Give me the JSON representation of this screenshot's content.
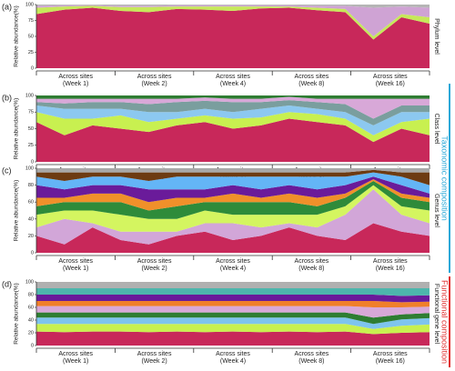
{
  "chart_data": [
    {
      "type": "stacked_area",
      "panel_label": "(a)",
      "y_label": "Relative abundance(%)",
      "level_label": "Phylum level",
      "ylim": [
        0,
        100
      ],
      "yticks": [
        0,
        25,
        50,
        75,
        100
      ],
      "categories": [
        null,
        null,
        null,
        null,
        null,
        null,
        null,
        null,
        null,
        null,
        null,
        null,
        null,
        null,
        null
      ],
      "groups": [
        [
          "Across sites",
          "(Week 1)"
        ],
        [
          "Across sites",
          "(Week 2)"
        ],
        [
          "Across sites",
          "(Week 4)"
        ],
        [
          "Across sites",
          "(Week 8)"
        ],
        [
          "Across sites",
          "(Week 16)"
        ]
      ],
      "series": [
        {
          "color": "#c8285a",
          "values": [
            85,
            92,
            95,
            90,
            88,
            93,
            92,
            90,
            94,
            95,
            91,
            88,
            45,
            80,
            70
          ]
        },
        {
          "color": "#c6e85a",
          "values": [
            10,
            5,
            3,
            6,
            8,
            4,
            5,
            7,
            3,
            2,
            4,
            5,
            5,
            5,
            10
          ]
        },
        {
          "color": "#cfa3d4",
          "values": [
            3,
            2,
            1,
            2,
            2,
            2,
            2,
            2,
            2,
            2,
            3,
            5,
            45,
            12,
            15
          ]
        },
        {
          "color": "#b5b5b5",
          "values": [
            2,
            1,
            1,
            2,
            2,
            1,
            1,
            1,
            1,
            1,
            2,
            2,
            5,
            3,
            5
          ]
        }
      ]
    },
    {
      "type": "stacked_area",
      "panel_label": "(b)",
      "y_label": "Relative abundance(%)",
      "level_label": "Class level",
      "ylim": [
        0,
        100
      ],
      "yticks": [
        0,
        25,
        50,
        75,
        100
      ],
      "categories": [
        null,
        null,
        null,
        null,
        null,
        null,
        null,
        null,
        null,
        null,
        null,
        null,
        null,
        null,
        null
      ],
      "groups": [
        [
          "Across sites",
          "(Week 1)"
        ],
        [
          "Across sites",
          "(Week 2)"
        ],
        [
          "Across sites",
          "(Week 4)"
        ],
        [
          "Across sites",
          "(Week 8)"
        ],
        [
          "Across sites",
          "(Week 16)"
        ]
      ],
      "series": [
        {
          "color": "#c8285a",
          "values": [
            60,
            40,
            55,
            50,
            45,
            55,
            60,
            50,
            55,
            65,
            60,
            55,
            30,
            50,
            40
          ]
        },
        {
          "color": "#c8f050",
          "values": [
            15,
            25,
            10,
            20,
            15,
            10,
            10,
            15,
            12,
            10,
            12,
            10,
            10,
            10,
            25
          ]
        },
        {
          "color": "#8cc8f0",
          "values": [
            10,
            15,
            15,
            10,
            15,
            10,
            10,
            10,
            13,
            10,
            8,
            10,
            15,
            15,
            10
          ]
        },
        {
          "color": "#7a9e9e",
          "values": [
            5,
            8,
            10,
            10,
            12,
            15,
            12,
            15,
            10,
            8,
            10,
            12,
            10,
            10,
            10
          ]
        },
        {
          "color": "#d8a8d8",
          "values": [
            5,
            7,
            5,
            5,
            8,
            5,
            5,
            5,
            5,
            5,
            5,
            8,
            30,
            10,
            10
          ]
        },
        {
          "color": "#2e7d32",
          "values": [
            5,
            5,
            5,
            5,
            5,
            5,
            3,
            5,
            5,
            2,
            5,
            5,
            5,
            5,
            5
          ]
        }
      ]
    },
    {
      "type": "stacked_area",
      "panel_label": "(c)",
      "y_label": "Relative abundance(%)",
      "level_label": "Genus level",
      "ylim": [
        0,
        100
      ],
      "yticks": [
        0,
        20,
        40,
        60,
        80,
        100
      ],
      "categories": [
        null,
        null,
        null,
        null,
        null,
        null,
        null,
        null,
        null,
        null,
        null,
        null,
        null,
        null,
        null
      ],
      "groups": [
        [
          "Across sites",
          "(Week 1)"
        ],
        [
          "Across sites",
          "(Week 2)"
        ],
        [
          "Across sites",
          "(Week 4)"
        ],
        [
          "Across sites",
          "(Week 8)"
        ],
        [
          "Across sites",
          "(Week 16)"
        ]
      ],
      "series": [
        {
          "color": "#c8285a",
          "values": [
            20,
            10,
            30,
            15,
            10,
            20,
            25,
            15,
            20,
            30,
            20,
            15,
            35,
            25,
            20
          ]
        },
        {
          "color": "#d2a6d8",
          "values": [
            10,
            30,
            5,
            10,
            15,
            5,
            10,
            20,
            10,
            5,
            10,
            30,
            40,
            20,
            15
          ]
        },
        {
          "color": "#d4f560",
          "values": [
            15,
            10,
            15,
            20,
            15,
            15,
            15,
            10,
            15,
            10,
            15,
            10,
            5,
            10,
            15
          ]
        },
        {
          "color": "#2e8b3a",
          "values": [
            10,
            10,
            10,
            15,
            10,
            15,
            10,
            15,
            15,
            15,
            10,
            10,
            5,
            10,
            10
          ]
        },
        {
          "color": "#f0902a",
          "values": [
            10,
            5,
            10,
            10,
            10,
            10,
            5,
            10,
            5,
            10,
            10,
            5,
            2,
            5,
            5
          ]
        },
        {
          "color": "#6a1b9a",
          "values": [
            15,
            10,
            10,
            10,
            15,
            10,
            10,
            10,
            10,
            10,
            10,
            10,
            3,
            10,
            5
          ]
        },
        {
          "color": "#64b5f6",
          "values": [
            10,
            10,
            10,
            10,
            10,
            15,
            15,
            10,
            15,
            10,
            15,
            10,
            5,
            10,
            10
          ]
        },
        {
          "color": "#6d3b12",
          "values": [
            5,
            10,
            5,
            5,
            10,
            5,
            5,
            5,
            5,
            5,
            5,
            5,
            3,
            5,
            15
          ]
        },
        {
          "color": "#a8a8a8",
          "values": [
            5,
            5,
            5,
            5,
            5,
            5,
            5,
            5,
            5,
            5,
            5,
            5,
            2,
            5,
            5
          ]
        }
      ]
    },
    {
      "type": "stacked_area",
      "panel_label": "(d)",
      "y_label": "Relative abundance(%)",
      "level_label": "Functional gene level",
      "ylim": [
        0,
        100
      ],
      "yticks": [
        0,
        20,
        40,
        60,
        80,
        100
      ],
      "categories": [
        null,
        null,
        null,
        null,
        null,
        null,
        null,
        null,
        null,
        null,
        null,
        null,
        null,
        null,
        null
      ],
      "groups": [
        [
          "Across sites",
          "(Week 1)"
        ],
        [
          "Across sites",
          "(Week 2)"
        ],
        [
          "Across sites",
          "(Week 4)"
        ],
        [
          "Across sites",
          "(Week 8)"
        ],
        [
          "Across sites",
          "(Week 16)"
        ]
      ],
      "series": [
        {
          "color": "#c8285a",
          "values": [
            22,
            21,
            22,
            22,
            21,
            22,
            21,
            22,
            21,
            22,
            21,
            22,
            18,
            20,
            21
          ]
        },
        {
          "color": "#c8f050",
          "values": [
            12,
            13,
            12,
            12,
            13,
            12,
            13,
            12,
            13,
            12,
            13,
            12,
            8,
            11,
            12
          ]
        },
        {
          "color": "#7ec4ee",
          "values": [
            10,
            10,
            10,
            10,
            10,
            10,
            10,
            10,
            10,
            10,
            10,
            10,
            8,
            10,
            10
          ]
        },
        {
          "color": "#2e7d32",
          "values": [
            8,
            8,
            8,
            8,
            8,
            8,
            8,
            8,
            8,
            8,
            8,
            8,
            10,
            8,
            8
          ]
        },
        {
          "color": "#d8a8d8",
          "values": [
            10,
            10,
            10,
            10,
            10,
            10,
            10,
            10,
            10,
            10,
            10,
            10,
            16,
            11,
            10
          ]
        },
        {
          "color": "#f07f2a",
          "values": [
            8,
            8,
            8,
            8,
            8,
            8,
            8,
            8,
            8,
            8,
            8,
            8,
            10,
            8,
            8
          ]
        },
        {
          "color": "#6a1b9a",
          "values": [
            10,
            10,
            10,
            10,
            10,
            10,
            10,
            10,
            10,
            10,
            10,
            10,
            10,
            10,
            10
          ]
        },
        {
          "color": "#4db6ac",
          "values": [
            10,
            10,
            10,
            10,
            10,
            10,
            10,
            10,
            10,
            10,
            10,
            10,
            10,
            12,
            11
          ]
        },
        {
          "color": "#b0b0b0",
          "values": [
            10,
            10,
            10,
            10,
            10,
            10,
            10,
            10,
            10,
            10,
            10,
            10,
            10,
            10,
            10
          ]
        }
      ]
    }
  ],
  "side_labels": {
    "taxonomic": "Taxonomic composition",
    "functional": "Functional composition"
  }
}
